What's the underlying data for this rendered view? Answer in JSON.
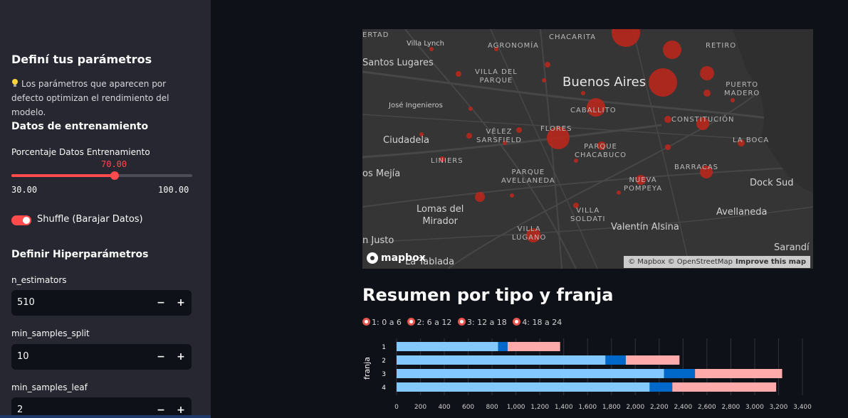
{
  "sidebar": {
    "title": "Definí tus parámetros",
    "hint": "Los parámetros que aparecen por defecto optimizan el rendimiento del modelo.",
    "training_header": "Datos de entrenamiento",
    "slider": {
      "label": "Porcentaje Datos Entrenamiento",
      "value": "70.00",
      "min": "30.00",
      "max": "100.00",
      "fraction": 0.5714
    },
    "shuffle_label": "Shuffle (Barajar Datos)",
    "hyper_header": "Definir Hiperparámetros",
    "n_estimators": {
      "label": "n_estimators",
      "value": "510"
    },
    "min_samples_split": {
      "label": "min_samples_split",
      "value": "10"
    },
    "min_samples_leaf": {
      "label": "min_samples_leaf",
      "value": "2"
    },
    "minus": "−",
    "plus": "+"
  },
  "map": {
    "labels": {
      "buenos_aires": "Buenos Aires",
      "santos_lugares": "Santos Lugares",
      "villa_lynch": "Villa Lynch",
      "jose_ingenieros": "José Ingenieros",
      "ciudadela": "Ciudadela",
      "mejia": "os Mejía",
      "lomas_del_mirador": "Lomas del\nMirador",
      "san_justo": "n Justo",
      "la_tablada": "La Tablada",
      "valentin_alsina": "Valentín Alsina",
      "dock_sud": "Dock Sud",
      "avellaneda": "Avellaneda",
      "sarandi": "Sarandí",
      "chacarita": "CHACARITA",
      "agronomia": "AGRONOMÍA",
      "retiro": "RETIRO",
      "villa_del_parque": "VILLA DEL\nPARQUE",
      "puerto_madero": "PUERTO\nMADERO",
      "caballito": "CABALLITO",
      "constitucion": "CONSTITUCIÓN",
      "velez_sarsfield": "VÉLEZ\nSARSFIELD",
      "flores": "FLORES",
      "parque_chacabuco": "PARQUE\nCHACABUCO",
      "la_boca": "LA BOCA",
      "liniers": "LINIERS",
      "parque_avellaneda": "PARQUE\nAVELLANEDA",
      "barracas": "BARRACAS",
      "nueva_pompeya": "NUEVA\nPOMPEYA",
      "villa_soldati": "VILLA\nSOLDATI",
      "villa_lugano": "VILLA\nLUGANO",
      "ertad": "ERTAD"
    },
    "logo": "mapbox",
    "attribution": "© Mapbox © OpenStreetMap",
    "improve": "Improve this map",
    "point_color": "#c0261b"
  },
  "section_title": "Resumen por tipo y franja",
  "legend": [
    "1: 0 a 6",
    "2: 6 a 12",
    "3: 12 a 18",
    "4: 18 a 24"
  ],
  "chart_data": {
    "type": "bar",
    "orientation": "horizontal",
    "stacked": true,
    "categories": [
      "1",
      "2",
      "3",
      "4"
    ],
    "ylabel": "franja",
    "xlim": [
      0,
      3400
    ],
    "x_ticks": [
      "0",
      "200",
      "400",
      "600",
      "800",
      "1,000",
      "1,200",
      "1,400",
      "1,600",
      "1,800",
      "2,000",
      "2,200",
      "2,400",
      "2,600",
      "2,800",
      "3,000",
      "3,200",
      "3,400"
    ],
    "colors": [
      "#83c9ff",
      "#0068c9",
      "#ffabab"
    ],
    "series": [
      {
        "values": [
          850,
          1750,
          2240,
          2120
        ]
      },
      {
        "values": [
          80,
          170,
          260,
          190
        ]
      },
      {
        "values": [
          440,
          450,
          730,
          870
        ]
      }
    ],
    "grid": true
  }
}
